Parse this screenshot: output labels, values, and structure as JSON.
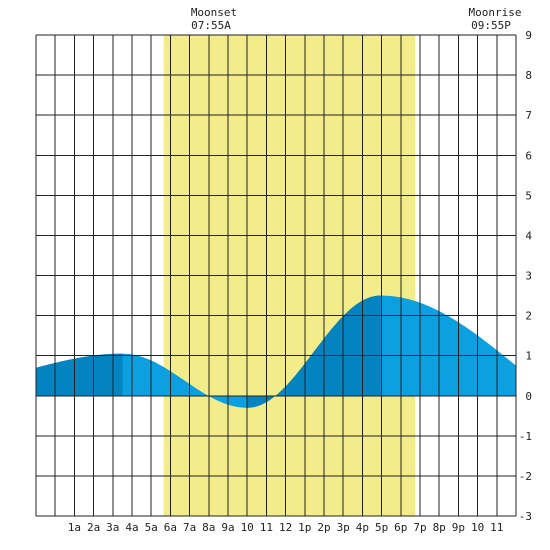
{
  "header": {
    "moonset_label": "Moonset",
    "moonset_time": "07:55A",
    "moonrise_label": "Moonrise",
    "moonrise_time": "09:55P"
  },
  "colors": {
    "daylight": "#f3ec8a",
    "tide_fill": "#0da0e1",
    "tide_fill_dark": "#0384c0",
    "grid": "#222222",
    "background": "#ffffff"
  },
  "chart_data": {
    "type": "area",
    "title": "",
    "xlabel": "",
    "ylabel": "",
    "x_range_hours": [
      -1,
      24
    ],
    "ylim": [
      -3,
      9
    ],
    "y_ticks": [
      9,
      8,
      7,
      6,
      5,
      4,
      3,
      2,
      1,
      0,
      -1,
      -2,
      -3
    ],
    "x_ticks": [
      {
        "hour": 1,
        "label": "1a"
      },
      {
        "hour": 2,
        "label": "2a"
      },
      {
        "hour": 3,
        "label": "3a"
      },
      {
        "hour": 4,
        "label": "4a"
      },
      {
        "hour": 5,
        "label": "5a"
      },
      {
        "hour": 6,
        "label": "6a"
      },
      {
        "hour": 7,
        "label": "7a"
      },
      {
        "hour": 8,
        "label": "8a"
      },
      {
        "hour": 9,
        "label": "9a"
      },
      {
        "hour": 10,
        "label": "10"
      },
      {
        "hour": 11,
        "label": "11"
      },
      {
        "hour": 12,
        "label": "12"
      },
      {
        "hour": 13,
        "label": "1p"
      },
      {
        "hour": 14,
        "label": "2p"
      },
      {
        "hour": 15,
        "label": "3p"
      },
      {
        "hour": 16,
        "label": "4p"
      },
      {
        "hour": 17,
        "label": "5p"
      },
      {
        "hour": 18,
        "label": "6p"
      },
      {
        "hour": 19,
        "label": "7p"
      },
      {
        "hour": 20,
        "label": "8p"
      },
      {
        "hour": 21,
        "label": "9p"
      },
      {
        "hour": 22,
        "label": "10"
      },
      {
        "hour": 23,
        "label": "11"
      }
    ],
    "daylight_hours": [
      5.65,
      18.75
    ],
    "moonset_hour": 7.92,
    "moonrise_hour": 21.92,
    "tide_extremes": [
      {
        "hour": 3.5,
        "height": 1.05,
        "kind": "high"
      },
      {
        "hour": 10.0,
        "height": -0.3,
        "kind": "low"
      },
      {
        "hour": 16.95,
        "height": 2.5,
        "kind": "high"
      }
    ],
    "tide_start": {
      "hour": -1,
      "height": 0.7
    },
    "tide_end": {
      "hour": 24,
      "height": 0.75
    },
    "dark_bands": [
      [
        -1,
        3.5
      ],
      [
        10.0,
        16.95
      ]
    ]
  }
}
